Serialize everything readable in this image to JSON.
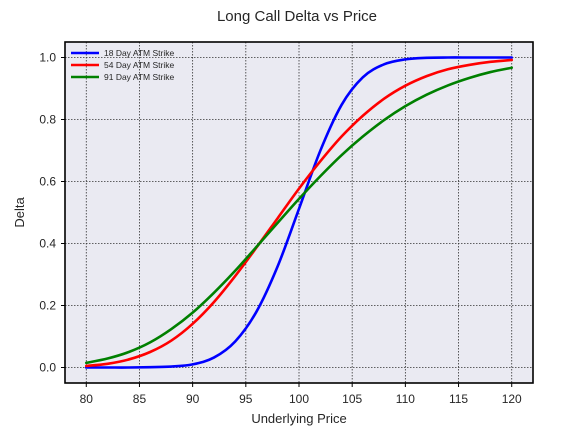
{
  "chart_data": {
    "type": "line",
    "title": "Long Call Delta vs Price",
    "xlabel": "Underlying Price",
    "ylabel": "Delta",
    "xlim": [
      78,
      122
    ],
    "ylim": [
      -0.05,
      1.05
    ],
    "x_ticks": [
      80,
      85,
      90,
      95,
      100,
      105,
      110,
      115,
      120
    ],
    "x_tick_labels": [
      "80",
      "85",
      "90",
      "95",
      "100",
      "105",
      "110",
      "115",
      "120"
    ],
    "y_ticks": [
      0.0,
      0.2,
      0.4,
      0.6,
      0.8,
      1.0
    ],
    "y_tick_labels": [
      "0.0",
      "0.2",
      "0.4",
      "0.6",
      "0.8",
      "1.0"
    ],
    "grid": true,
    "legend_position": "top-left",
    "background_color": "#eaeaf2",
    "x": [
      80,
      82,
      84,
      86,
      88,
      90,
      92,
      94,
      96,
      98,
      100,
      102,
      104,
      106,
      108,
      110,
      112,
      114,
      116,
      118,
      120
    ],
    "series": [
      {
        "name": "18 Day ATM Strike",
        "color": "#0000ff",
        "values": [
          0.0,
          0.0,
          0.0,
          0.001,
          0.003,
          0.01,
          0.032,
          0.084,
          0.18,
          0.327,
          0.512,
          0.699,
          0.847,
          0.936,
          0.978,
          0.994,
          0.999,
          1.0,
          1.0,
          1.0,
          1.0
        ]
      },
      {
        "name": "54 Day ATM Strike",
        "color": "#ff0000",
        "values": [
          0.005,
          0.012,
          0.026,
          0.05,
          0.087,
          0.141,
          0.211,
          0.295,
          0.387,
          0.482,
          0.577,
          0.665,
          0.745,
          0.812,
          0.867,
          0.909,
          0.94,
          0.962,
          0.976,
          0.986,
          0.992
        ]
      },
      {
        "name": "91 Day ATM Strike",
        "color": "#008000",
        "values": [
          0.015,
          0.029,
          0.05,
          0.081,
          0.124,
          0.177,
          0.241,
          0.312,
          0.389,
          0.467,
          0.544,
          0.617,
          0.685,
          0.745,
          0.798,
          0.843,
          0.88,
          0.91,
          0.934,
          0.953,
          0.967
        ]
      }
    ]
  }
}
